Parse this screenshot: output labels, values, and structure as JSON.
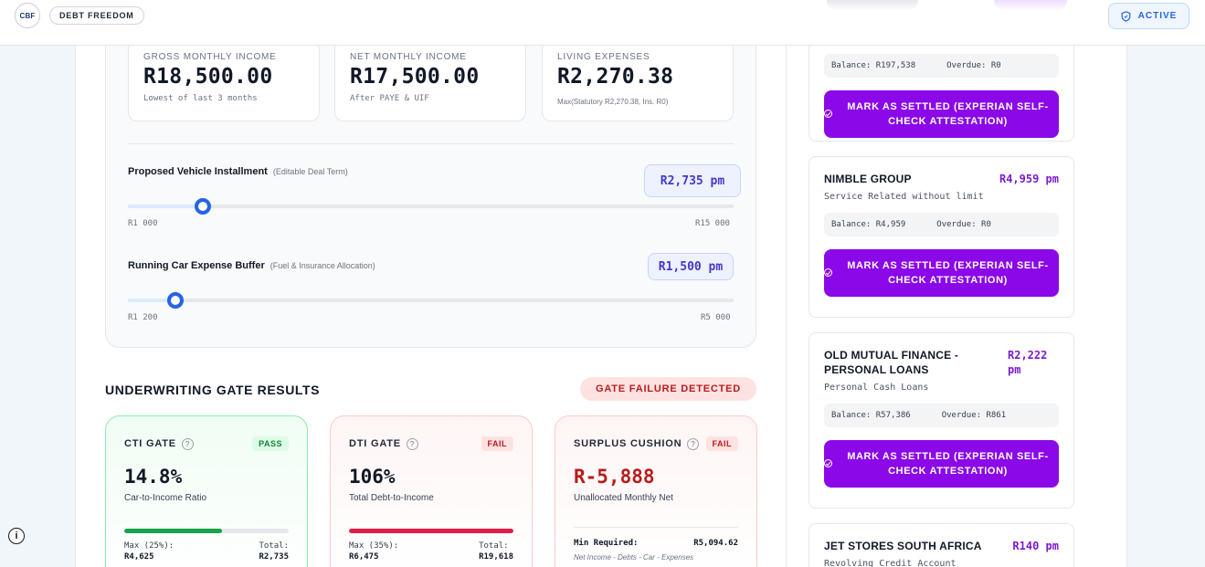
{
  "header": {
    "logo_text": "CBF",
    "brand": "DEBT FREEDOM",
    "status": "ACTIVE"
  },
  "income": {
    "gross": {
      "label": "Gross Monthly Income",
      "value": "R18,500.00",
      "sub": "Lowest of last 3 months"
    },
    "net": {
      "label": "Net Monthly Income",
      "value": "R17,500.00",
      "sub": "After PAYE & UIF"
    },
    "living": {
      "label": "Living Expenses",
      "value": "R2,270.38",
      "sub": "Max(Statutory R2,270.38, Ins. R0)"
    }
  },
  "installment": {
    "label": "Proposed Vehicle Installment",
    "hint": "(Editable Deal Term)",
    "value": "R2,735 pm",
    "min_label": "R1 000",
    "max_label": "R15 000",
    "min": 1000,
    "max": 15000,
    "current": 2735
  },
  "buffer": {
    "label": "Running Car Expense Buffer",
    "hint": "(Fuel & Insurance Allocation)",
    "value": "R1,500 pm",
    "min_label": "R1 200",
    "max_label": "R5 000",
    "min": 1200,
    "max": 5000,
    "current": 1500
  },
  "gates": {
    "title": "UNDERWRITING GATE RESULTS",
    "alert": "GATE FAILURE DETECTED",
    "cti": {
      "title": "CTI GATE",
      "badge": "PASS",
      "value": "14.8%",
      "sub": "Car-to-Income Ratio",
      "max_label": "Max (25%):",
      "max_value": "R4,625",
      "total_label": "Total:",
      "total_value": "R2,735",
      "fill": 0.592
    },
    "dti": {
      "title": "DTI GATE",
      "badge": "FAIL",
      "value": "106%",
      "sub": "Total Debt-to-Income",
      "max_label": "Max (35%):",
      "max_value": "R6,475",
      "total_label": "Total:",
      "total_value": "R19,618",
      "fill": 1.0
    },
    "surplus": {
      "title": "SURPLUS CUSHION",
      "badge": "FAIL",
      "value": "R-5,888",
      "sub": "Unallocated Monthly Net",
      "min_label": "Min Required:",
      "min_value": "R5,094.62",
      "note": "Net Income - Debts - Car - Expenses"
    }
  },
  "accounts": [
    {
      "balance": "Balance: R197,538",
      "overdue": "Overdue: R0",
      "action": "MARK AS SETTLED (EXPERIAN SELF-CHECK ATTESTATION)"
    },
    {
      "name": "NIMBLE GROUP",
      "amount": "R4,959 pm",
      "type": "Service Related without limit",
      "balance": "Balance: R4,959",
      "overdue": "Overdue: R0",
      "action": "MARK AS SETTLED (EXPERIAN SELF-CHECK ATTESTATION)"
    },
    {
      "name": "OLD MUTUAL FINANCE - PERSONAL LOANS",
      "amount": "R2,222 pm",
      "type": "Personal Cash Loans",
      "balance": "Balance: R57,386",
      "overdue": "Overdue: R861",
      "action": "MARK AS SETTLED (EXPERIAN SELF-CHECK ATTESTATION)"
    },
    {
      "name": "JET STORES SOUTH AFRICA",
      "amount": "R140 pm",
      "type": "Revolving Credit Account"
    }
  ],
  "colors": {
    "accent": "#8b08e8",
    "pass": "#16a34a",
    "fail": "#dc2626",
    "slider": "#2563eb"
  }
}
